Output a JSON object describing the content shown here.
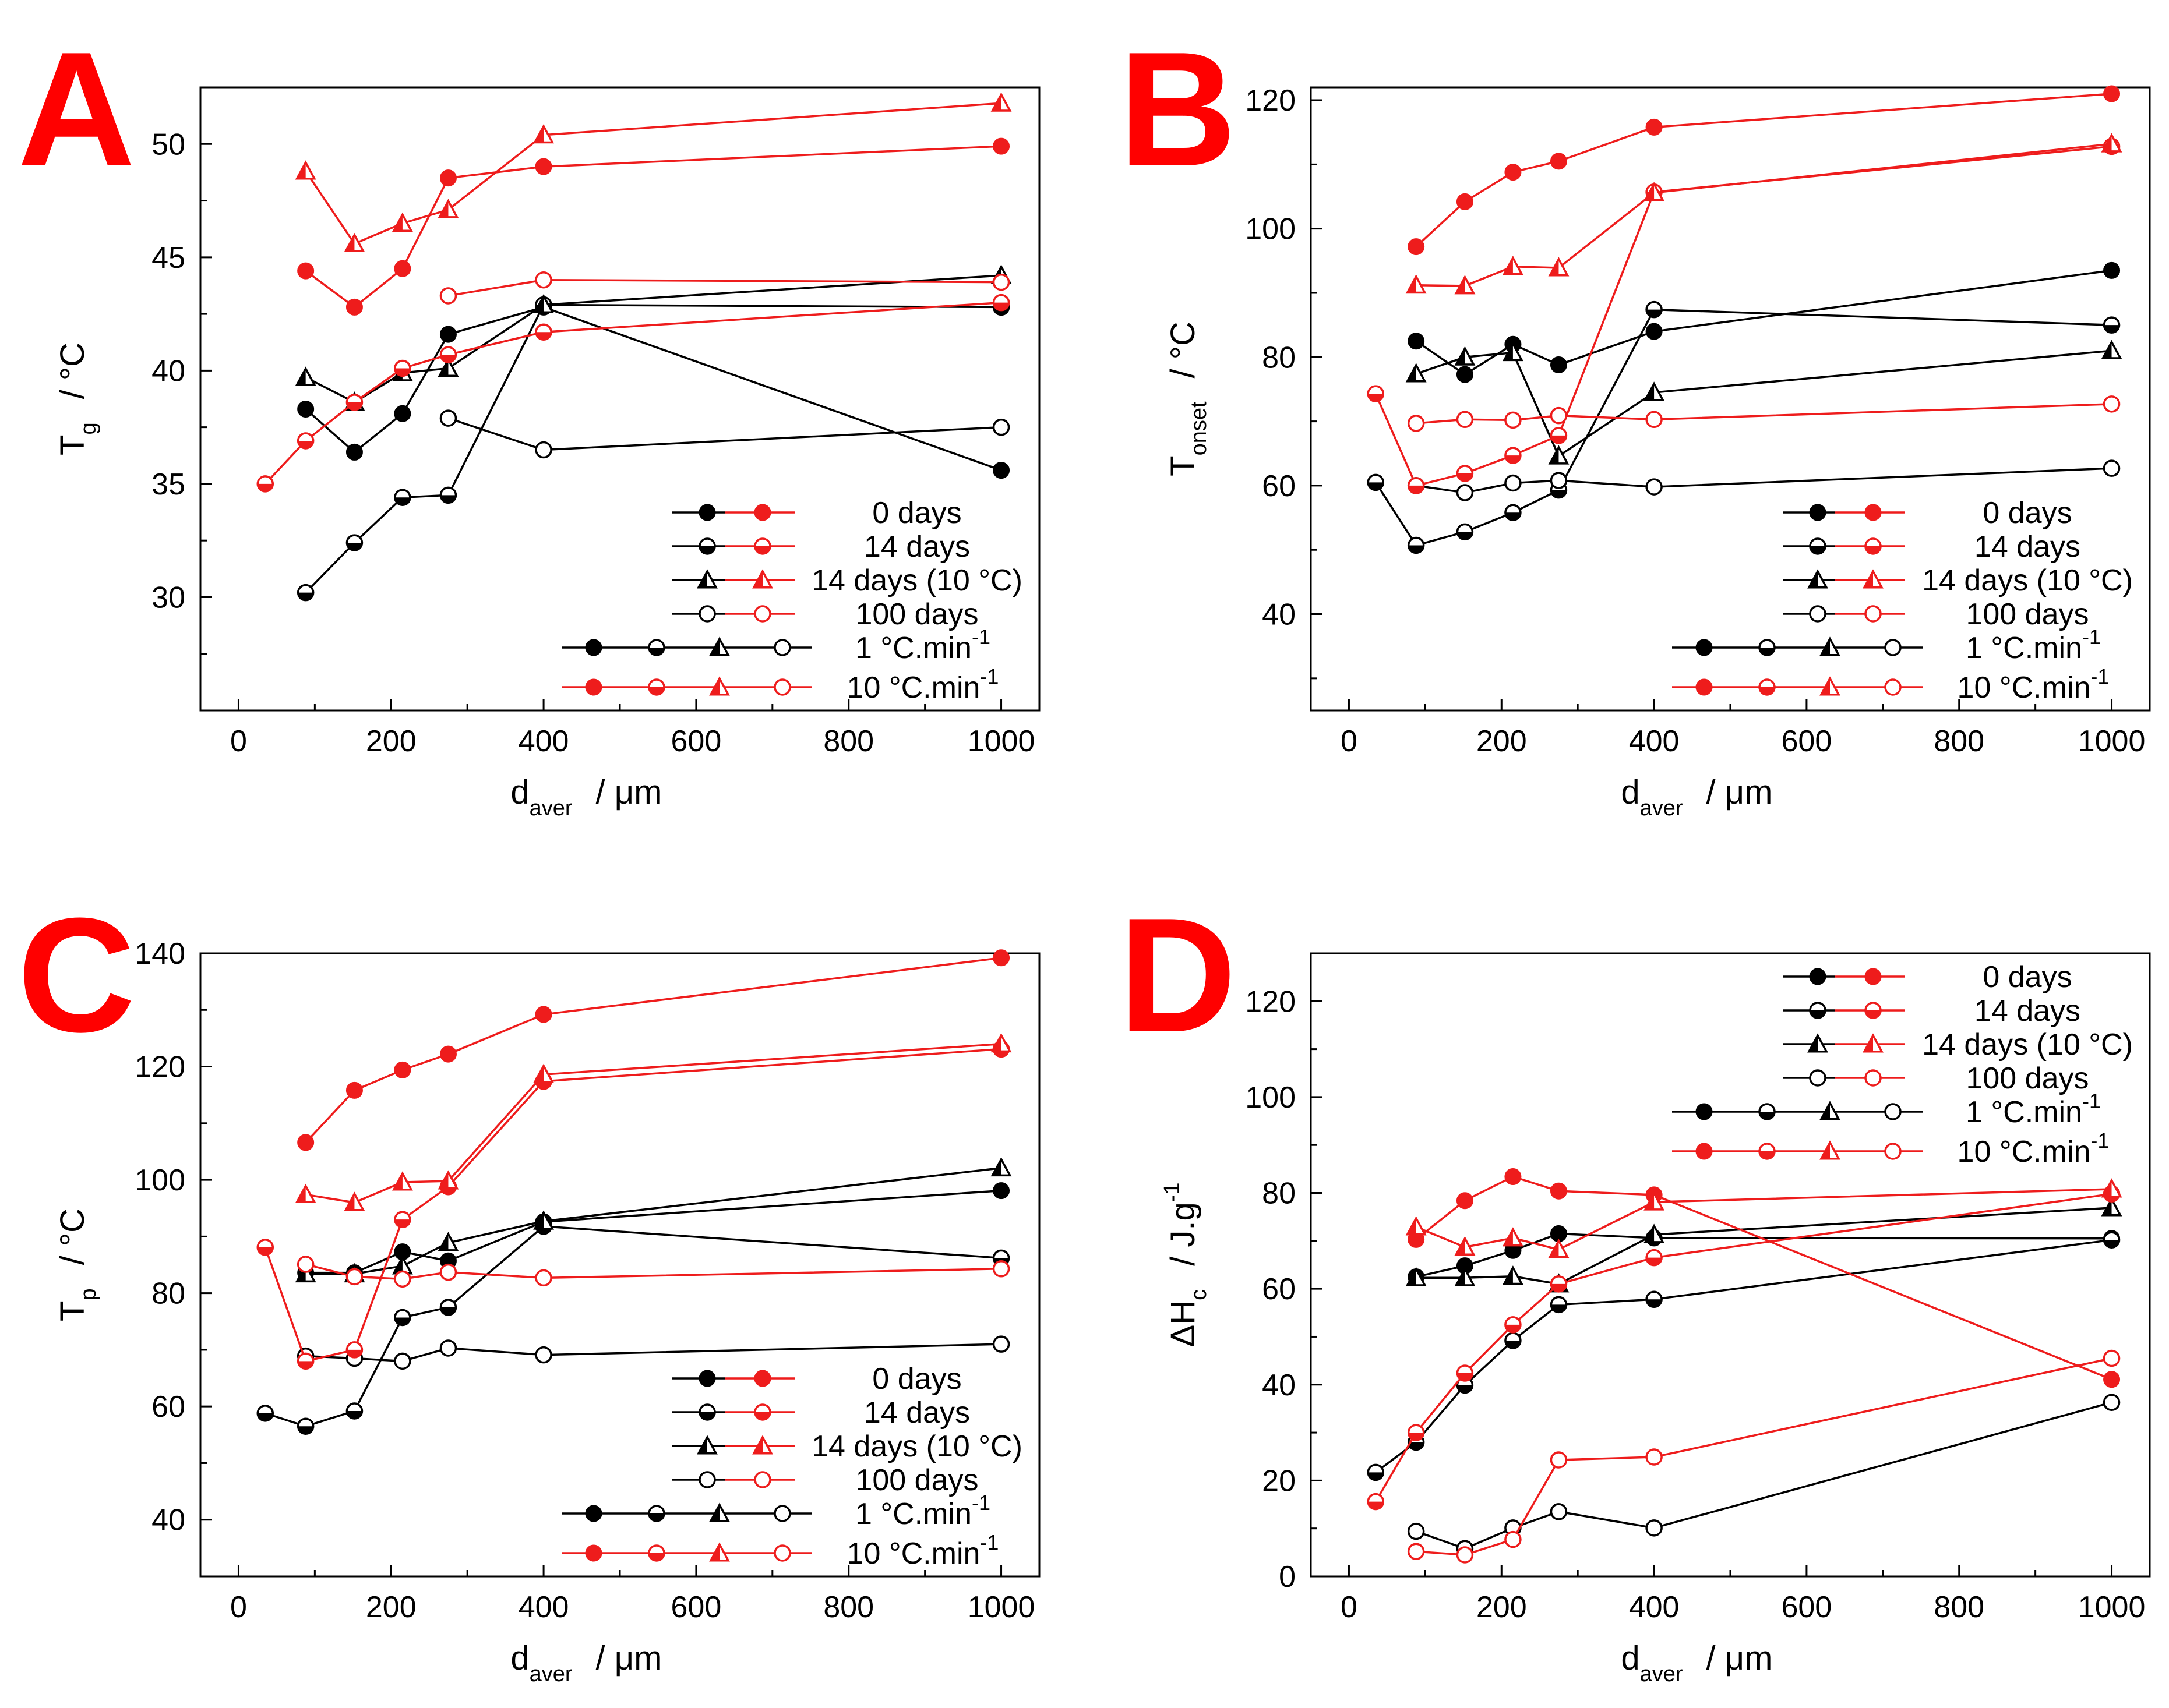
{
  "colors": {
    "black": "#000000",
    "red": "#ee1c1c",
    "panel_letter": "#ff0000"
  },
  "legend": {
    "entries": [
      "0 days",
      "14 days",
      "14 days (10 °C)",
      "100 days"
    ],
    "markers": [
      "filled-circle",
      "half-circle",
      "half-triangle",
      "open-circle"
    ],
    "rate_1": {
      "value": "1 °C.min",
      "exp": "-1"
    },
    "rate_10": {
      "value": "10 °C.min",
      "exp": "-1"
    }
  },
  "chart_data": [
    {
      "panel": "A",
      "type": "line",
      "xlabel": {
        "main": "d",
        "sub": "aver",
        "unit": "/   μm"
      },
      "ylabel": {
        "main": "T",
        "sub": "g",
        "unit": "/   °C"
      },
      "xlim": [
        -50,
        1050
      ],
      "ylim": [
        25,
        52.5
      ],
      "xticks": [
        0,
        200,
        400,
        600,
        800,
        1000
      ],
      "yticks": [
        30,
        35,
        40,
        45,
        50
      ],
      "series": [
        {
          "name": "0 days",
          "rate": "1 °C.min-1",
          "marker": "filled-circle",
          "color": "black",
          "x": [
            88,
            152,
            215,
            275,
            400,
            1000
          ],
          "y": [
            38.3,
            36.4,
            38.1,
            41.6,
            42.8,
            35.6
          ]
        },
        {
          "name": "14 days",
          "rate": "1 °C.min-1",
          "marker": "half-circle",
          "color": "black",
          "x": [
            88,
            152,
            215,
            275,
            400,
            1000
          ],
          "y": [
            30.2,
            32.4,
            34.4,
            34.5,
            42.9,
            42.8
          ]
        },
        {
          "name": "14 days (10 °C)",
          "rate": "1 °C.min-1",
          "marker": "half-triangle",
          "color": "black",
          "x": [
            88,
            152,
            215,
            275,
            400,
            1000
          ],
          "y": [
            39.7,
            38.6,
            39.9,
            40.1,
            42.9,
            44.2
          ]
        },
        {
          "name": "100 days",
          "rate": "1 °C.min-1",
          "marker": "open-circle",
          "color": "black",
          "x": [
            275,
            400,
            1000
          ],
          "y": [
            37.9,
            36.5,
            37.5
          ]
        },
        {
          "name": "0 days",
          "rate": "10 °C.min-1",
          "marker": "filled-circle",
          "color": "red",
          "x": [
            88,
            152,
            215,
            275,
            400,
            1000
          ],
          "y": [
            44.4,
            42.8,
            44.5,
            48.5,
            49.0,
            49.9
          ]
        },
        {
          "name": "14 days",
          "rate": "10 °C.min-1",
          "marker": "half-circle",
          "color": "red",
          "x": [
            35,
            88,
            152,
            215,
            275,
            400,
            1000
          ],
          "y": [
            35.0,
            36.9,
            38.6,
            40.1,
            40.7,
            41.7,
            43.0
          ]
        },
        {
          "name": "14 days (10 °C)",
          "rate": "10 °C.min-1",
          "marker": "half-triangle",
          "color": "red",
          "x": [
            88,
            152,
            215,
            275,
            400,
            1000
          ],
          "y": [
            48.8,
            45.6,
            46.5,
            47.1,
            50.4,
            51.8
          ]
        },
        {
          "name": "100 days",
          "rate": "10 °C.min-1",
          "marker": "open-circle",
          "color": "red",
          "x": [
            275,
            400,
            1000
          ],
          "y": [
            43.3,
            44.0,
            43.9
          ]
        }
      ]
    },
    {
      "panel": "B",
      "type": "line",
      "xlabel": {
        "main": "d",
        "sub": "aver",
        "unit": "/   μm"
      },
      "ylabel": {
        "main": "T",
        "sub": "onset",
        "unit": "/   °C"
      },
      "xlim": [
        -50,
        1050
      ],
      "ylim": [
        25,
        122
      ],
      "xticks": [
        0,
        200,
        400,
        600,
        800,
        1000
      ],
      "yticks": [
        40,
        60,
        80,
        100,
        120
      ],
      "series": [
        {
          "name": "0 days",
          "rate": "1 °C.min-1",
          "marker": "filled-circle",
          "color": "black",
          "x": [
            88,
            152,
            215,
            275,
            400,
            1000
          ],
          "y": [
            82.5,
            77.3,
            82.0,
            78.8,
            84.0,
            93.5
          ]
        },
        {
          "name": "14 days",
          "rate": "1 °C.min-1",
          "marker": "half-circle",
          "color": "black",
          "x": [
            35,
            88,
            152,
            215,
            275,
            400,
            1000
          ],
          "y": [
            60.5,
            50.7,
            52.8,
            55.8,
            59.3,
            87.4,
            85.0
          ]
        },
        {
          "name": "14 days (10 °C)",
          "rate": "1 °C.min-1",
          "marker": "half-triangle",
          "color": "black",
          "x": [
            88,
            152,
            215,
            275,
            400,
            1000
          ],
          "y": [
            77.4,
            80.0,
            80.7,
            64.6,
            74.5,
            81.0
          ]
        },
        {
          "name": "100 days",
          "rate": "1 °C.min-1",
          "marker": "open-circle",
          "color": "black",
          "x": [
            88,
            152,
            215,
            275,
            400,
            1000
          ],
          "y": [
            60.0,
            58.9,
            60.4,
            60.8,
            59.8,
            62.7
          ]
        },
        {
          "name": "0 days",
          "rate": "10 °C.min-1",
          "marker": "filled-circle",
          "color": "red",
          "x": [
            88,
            152,
            215,
            275,
            400,
            1000
          ],
          "y": [
            97.2,
            104.2,
            108.8,
            110.5,
            115.8,
            121.0
          ]
        },
        {
          "name": "14 days",
          "rate": "10 °C.min-1",
          "marker": "half-circle",
          "color": "red",
          "x": [
            35,
            88,
            152,
            215,
            275,
            400,
            1000
          ],
          "y": [
            74.3,
            60.0,
            61.9,
            64.7,
            67.8,
            105.7,
            112.8
          ]
        },
        {
          "name": "14 days (10 °C)",
          "rate": "10 °C.min-1",
          "marker": "half-triangle",
          "color": "red",
          "x": [
            88,
            152,
            215,
            275,
            400,
            1000
          ],
          "y": [
            91.2,
            91.1,
            94.1,
            93.9,
            105.6,
            113.2
          ]
        },
        {
          "name": "100 days",
          "rate": "10 °C.min-1",
          "marker": "open-circle",
          "color": "red",
          "x": [
            88,
            152,
            215,
            275,
            400,
            1000
          ],
          "y": [
            69.7,
            70.3,
            70.2,
            70.9,
            70.3,
            72.7
          ]
        }
      ]
    },
    {
      "panel": "C",
      "type": "line",
      "xlabel": {
        "main": "d",
        "sub": "aver",
        "unit": "/   μm"
      },
      "ylabel": {
        "main": "T",
        "sub": "p",
        "unit": "/   °C"
      },
      "xlim": [
        -50,
        1050
      ],
      "ylim": [
        30,
        140
      ],
      "xticks": [
        0,
        200,
        400,
        600,
        800,
        1000
      ],
      "yticks": [
        40,
        60,
        80,
        100,
        120,
        140
      ],
      "series": [
        {
          "name": "0 days",
          "rate": "1 °C.min-1",
          "marker": "filled-circle",
          "color": "black",
          "x": [
            88,
            152,
            215,
            275,
            400,
            1000
          ],
          "y": [
            83.6,
            83.6,
            87.3,
            85.7,
            92.6,
            98.1
          ]
        },
        {
          "name": "14 days",
          "rate": "1 °C.min-1",
          "marker": "half-circle",
          "color": "black",
          "x": [
            35,
            88,
            152,
            215,
            275,
            400,
            1000
          ],
          "y": [
            58.8,
            56.5,
            59.2,
            75.7,
            77.5,
            91.8,
            86.2
          ]
        },
        {
          "name": "14 days (10 °C)",
          "rate": "1 °C.min-1",
          "marker": "half-triangle",
          "color": "black",
          "x": [
            88,
            152,
            215,
            275,
            400,
            1000
          ],
          "y": [
            83.4,
            83.4,
            84.8,
            88.9,
            92.7,
            102.1
          ]
        },
        {
          "name": "100 days",
          "rate": "1 °C.min-1",
          "marker": "open-circle",
          "color": "black",
          "x": [
            88,
            152,
            215,
            275,
            400,
            1000
          ],
          "y": [
            68.9,
            68.5,
            68.0,
            70.3,
            69.1,
            71.0
          ]
        },
        {
          "name": "0 days",
          "rate": "10 °C.min-1",
          "marker": "filled-circle",
          "color": "red",
          "x": [
            88,
            152,
            215,
            275,
            400,
            1000
          ],
          "y": [
            106.6,
            115.8,
            119.4,
            122.2,
            129.2,
            139.2
          ]
        },
        {
          "name": "14 days",
          "rate": "10 °C.min-1",
          "marker": "half-circle",
          "color": "red",
          "x": [
            35,
            88,
            152,
            215,
            275,
            400,
            1000
          ],
          "y": [
            88.1,
            68.0,
            70.0,
            93.0,
            98.8,
            117.4,
            123.1
          ]
        },
        {
          "name": "14 days (10 °C)",
          "rate": "10 °C.min-1",
          "marker": "half-triangle",
          "color": "red",
          "x": [
            88,
            152,
            215,
            275,
            400,
            1000
          ],
          "y": [
            97.4,
            96.0,
            99.6,
            99.8,
            118.6,
            124.0
          ]
        },
        {
          "name": "100 days",
          "rate": "10 °C.min-1",
          "marker": "open-circle",
          "color": "red",
          "x": [
            88,
            152,
            215,
            275,
            400,
            1000
          ],
          "y": [
            85.1,
            82.9,
            82.5,
            83.7,
            82.7,
            84.3
          ]
        }
      ]
    },
    {
      "panel": "D",
      "type": "line",
      "xlabel": {
        "main": "d",
        "sub": "aver",
        "unit": "/   μm"
      },
      "ylabel": {
        "main": "ΔH",
        "sub": "c",
        "unit": "/   J.g",
        "sup": "-1"
      },
      "xlim": [
        -50,
        1050
      ],
      "ylim": [
        0,
        130
      ],
      "xticks": [
        0,
        200,
        400,
        600,
        800,
        1000
      ],
      "yticks": [
        0,
        20,
        40,
        60,
        80,
        100,
        120
      ],
      "series": [
        {
          "name": "0 days",
          "rate": "1 °C.min-1",
          "marker": "filled-circle",
          "color": "black",
          "x": [
            88,
            152,
            215,
            275,
            400,
            1000
          ],
          "y": [
            62.5,
            64.8,
            68.0,
            71.5,
            70.6,
            70.5
          ]
        },
        {
          "name": "14 days",
          "rate": "1 °C.min-1",
          "marker": "half-circle",
          "color": "black",
          "x": [
            35,
            88,
            152,
            215,
            275,
            400,
            1000
          ],
          "y": [
            21.7,
            28.0,
            39.9,
            49.2,
            56.7,
            57.8,
            70.2
          ]
        },
        {
          "name": "14 days (10 °C)",
          "rate": "1 °C.min-1",
          "marker": "half-triangle",
          "color": "black",
          "x": [
            88,
            152,
            215,
            275,
            400,
            1000
          ],
          "y": [
            62.3,
            62.3,
            62.6,
            61.0,
            71.3,
            76.9
          ]
        },
        {
          "name": "100 days",
          "rate": "1 °C.min-1",
          "marker": "open-circle",
          "color": "black",
          "x": [
            88,
            152,
            215,
            275,
            400,
            1000
          ],
          "y": [
            9.4,
            5.8,
            10.1,
            13.5,
            10.1,
            36.3
          ]
        },
        {
          "name": "0 days",
          "rate": "10 °C.min-1",
          "marker": "filled-circle",
          "color": "red",
          "x": [
            88,
            152,
            215,
            275,
            400,
            1000
          ],
          "y": [
            70.3,
            78.4,
            83.4,
            80.4,
            79.6,
            41.1
          ]
        },
        {
          "name": "14 days",
          "rate": "10 °C.min-1",
          "marker": "half-circle",
          "color": "red",
          "x": [
            35,
            88,
            152,
            215,
            275,
            400,
            1000
          ],
          "y": [
            15.6,
            30.0,
            42.4,
            52.5,
            61.0,
            66.5,
            79.8
          ]
        },
        {
          "name": "14 days (10 °C)",
          "rate": "10 °C.min-1",
          "marker": "half-triangle",
          "color": "red",
          "x": [
            88,
            152,
            215,
            275,
            400,
            1000
          ],
          "y": [
            72.9,
            68.7,
            70.6,
            68.2,
            78.1,
            80.8
          ]
        },
        {
          "name": "100 days",
          "rate": "10 °C.min-1",
          "marker": "open-circle",
          "color": "red",
          "x": [
            88,
            152,
            215,
            275,
            400,
            1000
          ],
          "y": [
            5.2,
            4.5,
            7.7,
            24.3,
            24.9,
            45.5
          ]
        }
      ]
    }
  ]
}
